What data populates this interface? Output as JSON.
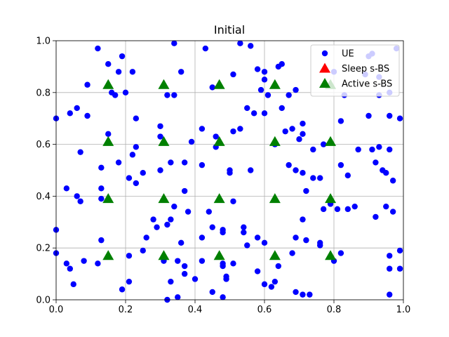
{
  "chart_data": {
    "type": "scatter",
    "title": "Initial",
    "xlim": [
      0,
      1
    ],
    "ylim": [
      0,
      1
    ],
    "xticks": [
      {
        "value": 0,
        "label": "0.0"
      },
      0.2,
      0.4,
      0.6,
      0.8,
      {
        "value": 1,
        "label": "1.0"
      }
    ],
    "yticks": [
      {
        "value": 0,
        "label": "0.0"
      },
      0.2,
      0.4,
      0.6,
      0.8,
      {
        "value": 1,
        "label": "1.0"
      }
    ],
    "grid": true,
    "legend": "upper-right",
    "series": [
      {
        "name": "UE",
        "color": "#0000ff",
        "marker": "circle",
        "x": [
          0.0,
          0.0,
          0.0,
          0.03,
          0.03,
          0.04,
          0.04,
          0.05,
          0.06,
          0.06,
          0.07,
          0.07,
          0.08,
          0.09,
          0.09,
          0.12,
          0.13,
          0.13,
          0.13,
          0.13,
          0.12,
          0.15,
          0.15,
          0.16,
          0.17,
          0.18,
          0.18,
          0.19,
          0.19,
          0.2,
          0.21,
          0.21,
          0.21,
          0.22,
          0.22,
          0.23,
          0.23,
          0.23,
          0.25,
          0.25,
          0.26,
          0.28,
          0.29,
          0.3,
          0.3,
          0.3,
          0.31,
          0.32,
          0.32,
          0.32,
          0.33,
          0.33,
          0.33,
          0.34,
          0.34,
          0.34,
          0.35,
          0.35,
          0.36,
          0.36,
          0.37,
          0.37,
          0.37,
          0.37,
          0.38,
          0.39,
          0.4,
          0.42,
          0.42,
          0.42,
          0.42,
          0.43,
          0.44,
          0.45,
          0.45,
          0.45,
          0.46,
          0.46,
          0.48,
          0.48,
          0.48,
          0.48,
          0.48,
          0.49,
          0.49,
          0.5,
          0.5,
          0.51,
          0.51,
          0.51,
          0.51,
          0.53,
          0.53,
          0.54,
          0.54,
          0.55,
          0.55,
          0.56,
          0.56,
          0.57,
          0.58,
          0.58,
          0.58,
          0.59,
          0.6,
          0.6,
          0.6,
          0.6,
          0.6,
          0.61,
          0.62,
          0.63,
          0.63,
          0.64,
          0.65,
          0.64,
          0.65,
          0.66,
          0.67,
          0.67,
          0.68,
          0.68,
          0.69,
          0.69,
          0.69,
          0.69,
          0.7,
          0.71,
          0.71,
          0.71,
          0.71,
          0.71,
          0.72,
          0.72,
          0.73,
          0.74,
          0.74,
          0.76,
          0.76,
          0.76,
          0.77,
          0.77,
          0.79,
          0.8,
          0.8,
          0.81,
          0.82,
          0.82,
          0.82,
          0.83,
          0.84,
          0.84,
          0.86,
          0.87,
          0.89,
          0.9,
          0.9,
          0.91,
          0.91,
          0.92,
          0.92,
          0.93,
          0.93,
          0.93,
          0.94,
          0.95,
          0.95,
          0.96,
          0.96,
          0.96,
          0.96,
          0.96,
          0.96,
          0.97,
          0.97,
          0.98,
          0.99,
          0.99,
          0.99
        ],
        "y": [
          0.7,
          0.27,
          0.18,
          0.43,
          0.14,
          0.12,
          0.72,
          0.06,
          0.74,
          0.4,
          0.38,
          0.57,
          0.15,
          0.83,
          0.71,
          0.97,
          0.51,
          0.43,
          0.39,
          0.23,
          0.14,
          0.91,
          0.64,
          0.8,
          0.79,
          0.88,
          0.53,
          0.94,
          0.04,
          0.8,
          0.47,
          0.17,
          0.07,
          0.88,
          0.56,
          0.7,
          0.59,
          0.45,
          0.49,
          0.19,
          0.24,
          0.31,
          0.28,
          0.67,
          0.5,
          0.63,
          0.15,
          0.79,
          0.29,
          0.0,
          0.53,
          0.31,
          0.07,
          0.99,
          0.79,
          0.36,
          0.15,
          0.01,
          0.88,
          0.22,
          0.42,
          0.53,
          0.1,
          0.13,
          0.34,
          0.61,
          0.08,
          0.66,
          0.52,
          0.24,
          0.15,
          0.97,
          0.34,
          0.82,
          0.28,
          0.03,
          0.59,
          0.63,
          0.13,
          0.14,
          0.27,
          0.26,
          0.01,
          0.09,
          0.08,
          0.5,
          0.49,
          0.87,
          0.65,
          0.38,
          0.14,
          0.66,
          0.99,
          0.26,
          0.28,
          0.74,
          0.21,
          0.5,
          0.98,
          0.72,
          0.89,
          0.11,
          0.24,
          0.81,
          0.72,
          0.85,
          0.22,
          0.06,
          0.88,
          0.79,
          0.05,
          0.6,
          0.07,
          0.9,
          0.91,
          0.13,
          0.74,
          0.65,
          0.52,
          0.79,
          0.18,
          0.66,
          0.5,
          0.24,
          0.81,
          0.03,
          0.62,
          0.31,
          0.49,
          0.68,
          0.64,
          0.02,
          0.42,
          0.23,
          0.02,
          0.47,
          0.58,
          0.47,
          0.22,
          0.21,
          0.35,
          0.6,
          0.37,
          0.88,
          0.15,
          0.35,
          0.52,
          0.69,
          0.18,
          0.79,
          0.48,
          0.35,
          0.36,
          0.58,
          0.87,
          0.94,
          0.71,
          0.95,
          0.58,
          0.53,
          0.32,
          0.79,
          0.86,
          0.59,
          0.5,
          0.36,
          0.49,
          0.71,
          0.58,
          0.17,
          0.02,
          0.8,
          0.12,
          0.46,
          0.34,
          0.97,
          0.7,
          0.19,
          0.12
        ]
      },
      {
        "name": "Sleep s-BS",
        "color": "#ff0000",
        "marker": "triangle",
        "x": [],
        "y": []
      },
      {
        "name": "Active s-BS",
        "color": "#008000",
        "marker": "triangle",
        "x": [
          0.15,
          0.15,
          0.15,
          0.15,
          0.31,
          0.31,
          0.31,
          0.31,
          0.47,
          0.47,
          0.47,
          0.47,
          0.63,
          0.63,
          0.63,
          0.63,
          0.79,
          0.79,
          0.79,
          0.79
        ],
        "y": [
          0.17,
          0.39,
          0.61,
          0.83,
          0.17,
          0.39,
          0.61,
          0.83,
          0.17,
          0.39,
          0.61,
          0.83,
          0.17,
          0.39,
          0.61,
          0.83,
          0.17,
          0.39,
          0.61,
          0.83
        ]
      }
    ]
  }
}
